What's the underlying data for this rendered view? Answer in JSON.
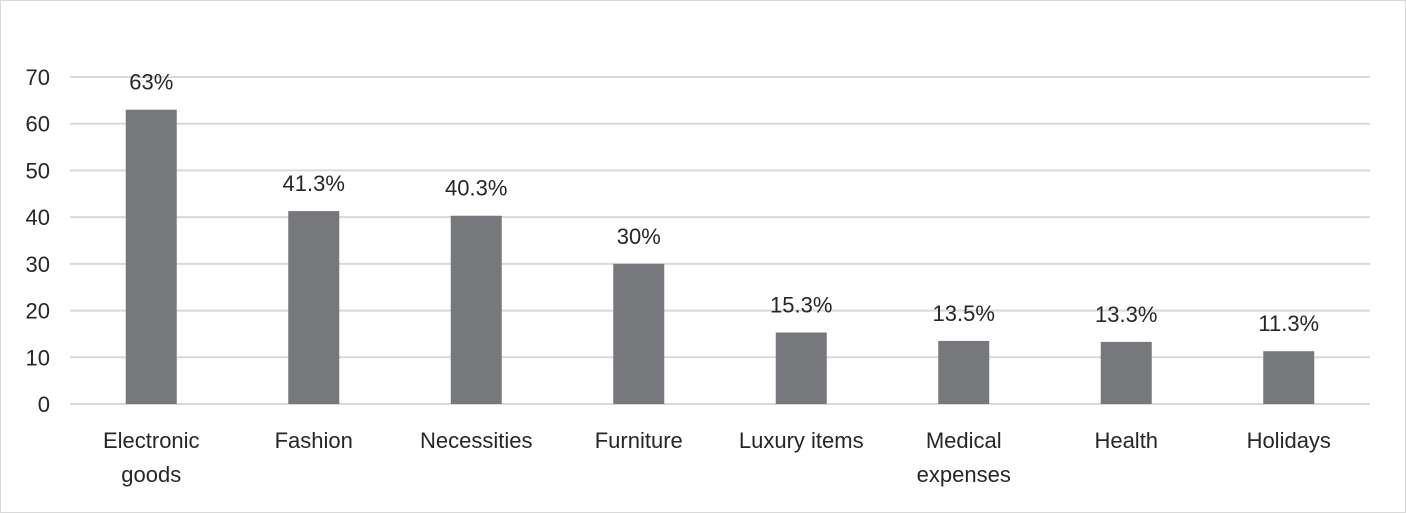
{
  "chart_data": {
    "type": "bar",
    "title": "",
    "xlabel": "",
    "ylabel": "",
    "categories": [
      [
        "Electronic",
        "goods"
      ],
      [
        "Fashion"
      ],
      [
        "Necessities"
      ],
      [
        "Furniture"
      ],
      [
        "Luxury items"
      ],
      [
        "Medical",
        "expenses"
      ],
      [
        "Health"
      ],
      [
        "Holidays"
      ]
    ],
    "values": [
      63,
      41.3,
      40.3,
      30,
      15.3,
      13.5,
      13.3,
      11.3
    ],
    "data_labels": [
      "63%",
      "41.3%",
      "40.3%",
      "30%",
      "15.3%",
      "13.5%",
      "13.3%",
      "11.3%"
    ],
    "yticks": [
      0,
      10,
      20,
      30,
      40,
      50,
      60,
      70
    ],
    "ylim": [
      0,
      70
    ],
    "grid": true,
    "legend": "none",
    "colors": {
      "bar": "#77787b",
      "grid": "#d9d9d9",
      "text": "#262626"
    }
  }
}
